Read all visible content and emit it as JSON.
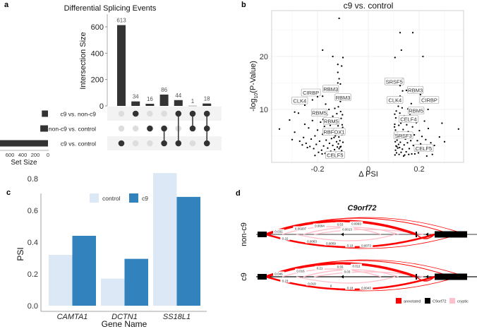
{
  "panels": {
    "a": "a",
    "b": "b",
    "c": "c",
    "d": "d"
  },
  "chart_data": [
    {
      "type": "bar",
      "subtype": "upset",
      "title": "Differential Splicing Events",
      "ylabel": "Intersection Size",
      "ylim": [
        0,
        700
      ],
      "yticks": [
        "0",
        "200",
        "400",
        "600"
      ],
      "sets": [
        {
          "name": "c9 vs. non-c9",
          "size": 97
        },
        {
          "name": "non-c9 vs. control",
          "size": 121
        },
        {
          "name": "c9 vs. control",
          "size": 761
        }
      ],
      "set_size_label": "Set Size",
      "set_size_ticks": [
        "600",
        "400",
        "200",
        "0"
      ],
      "intersections": [
        {
          "size": 613,
          "label": "613",
          "sets": [
            2
          ]
        },
        {
          "size": 34,
          "label": "34",
          "sets": [
            0
          ]
        },
        {
          "size": 16,
          "label": "16",
          "sets": [
            1
          ]
        },
        {
          "size": 86,
          "label": "86",
          "sets": [
            1,
            2
          ]
        },
        {
          "size": 44,
          "label": "44",
          "sets": [
            0,
            2
          ]
        },
        {
          "size": 1,
          "label": "1",
          "sets": [
            0,
            1
          ]
        },
        {
          "size": 18,
          "label": "18",
          "sets": [
            0,
            1,
            2
          ]
        }
      ],
      "colors": {
        "bar": "#333333",
        "dot_off": "#dddddd"
      }
    },
    {
      "type": "scatter",
      "title": "c9 vs. control",
      "xlabel": "Δ PSI",
      "ylabel_prefix": "-log",
      "ylabel_sub": "10",
      "ylabel_suffix": "(P-Value)",
      "xlim": [
        -0.38,
        0.375
      ],
      "ylim": [
        0,
        28.7
      ],
      "xticks": [
        {
          "v": -0.2,
          "label": "-0.2"
        },
        {
          "v": 0,
          "label": "0"
        },
        {
          "v": 0.2,
          "label": "0.2"
        }
      ],
      "yticks": [
        {
          "v": 10,
          "label": "10"
        },
        {
          "v": 20,
          "label": "20"
        }
      ],
      "grid": true,
      "points": [
        [
          -0.115,
          27.2
        ],
        [
          -0.18,
          21.2
        ],
        [
          -0.14,
          20
        ],
        [
          -0.1,
          19.8
        ],
        [
          -0.12,
          18.5
        ],
        [
          -0.105,
          18.2
        ],
        [
          -0.12,
          17
        ],
        [
          -0.115,
          15.8
        ],
        [
          -0.12,
          15
        ],
        [
          -0.11,
          14.8
        ],
        [
          -0.16,
          14
        ],
        [
          -0.125,
          13.5
        ],
        [
          -0.18,
          12.5
        ],
        [
          -0.2,
          12.4
        ],
        [
          -0.22,
          11.8
        ],
        [
          -0.25,
          10.8
        ],
        [
          -0.29,
          9.5
        ],
        [
          -0.275,
          9.3
        ],
        [
          -0.31,
          8
        ],
        [
          -0.35,
          6.3
        ],
        [
          -0.29,
          5.7
        ],
        [
          -0.3,
          4.3
        ],
        [
          -0.27,
          4
        ],
        [
          -0.21,
          1.3
        ],
        [
          0.125,
          24.5
        ],
        [
          0.175,
          24.5
        ],
        [
          0.13,
          21.2
        ],
        [
          0.105,
          19.8
        ],
        [
          0.215,
          20
        ],
        [
          0.135,
          15.8
        ],
        [
          0.125,
          14.5
        ],
        [
          0.15,
          13.6
        ],
        [
          0.205,
          12.8
        ],
        [
          0.22,
          12.3
        ],
        [
          0.235,
          10
        ],
        [
          0.29,
          7.4
        ],
        [
          0.355,
          6.3
        ],
        [
          0.28,
          4.8
        ],
        [
          0.3,
          3.9
        ],
        [
          0.26,
          3.2
        ],
        [
          0.23,
          1.2
        ],
        [
          -0.102,
          1.5
        ],
        [
          -0.105,
          2.2
        ],
        [
          -0.108,
          3.0
        ],
        [
          -0.11,
          1.8
        ],
        [
          -0.112,
          4.1
        ],
        [
          -0.115,
          2.6
        ],
        [
          -0.118,
          3.5
        ],
        [
          -0.12,
          1.6
        ],
        [
          -0.104,
          5.2
        ],
        [
          -0.106,
          6.0
        ],
        [
          -0.103,
          7.1
        ],
        [
          -0.107,
          8.3
        ],
        [
          -0.109,
          9.6
        ],
        [
          -0.113,
          5.5
        ],
        [
          -0.116,
          4.8
        ],
        [
          -0.122,
          2.9
        ],
        [
          -0.125,
          3.9
        ],
        [
          -0.128,
          1.9
        ],
        [
          -0.13,
          5.0
        ],
        [
          -0.133,
          2.4
        ],
        [
          -0.136,
          6.3
        ],
        [
          -0.14,
          3.2
        ],
        [
          -0.142,
          1.4
        ],
        [
          -0.145,
          4.5
        ],
        [
          -0.148,
          2.1
        ],
        [
          -0.15,
          7.0
        ],
        [
          -0.153,
          3.6
        ],
        [
          -0.156,
          5.7
        ],
        [
          -0.16,
          2.7
        ],
        [
          -0.163,
          9.0
        ],
        [
          -0.166,
          4.2
        ],
        [
          -0.17,
          1.7
        ],
        [
          -0.173,
          6.8
        ],
        [
          -0.176,
          3.1
        ],
        [
          -0.18,
          5.3
        ],
        [
          -0.184,
          2.3
        ],
        [
          -0.188,
          7.6
        ],
        [
          -0.192,
          4.0
        ],
        [
          -0.196,
          1.9
        ],
        [
          -0.2,
          6.1
        ],
        [
          -0.205,
          3.4
        ],
        [
          -0.21,
          5.0
        ],
        [
          -0.215,
          2.6
        ],
        [
          -0.22,
          7.9
        ],
        [
          -0.225,
          4.4
        ],
        [
          -0.23,
          3.0
        ],
        [
          -0.235,
          6.5
        ],
        [
          -0.24,
          2.8
        ],
        [
          -0.245,
          3.6
        ],
        [
          -0.25,
          7.2
        ],
        [
          -0.255,
          4.7
        ],
        [
          -0.26,
          3.3
        ],
        [
          -0.118,
          10.5
        ],
        [
          -0.124,
          9.2
        ],
        [
          -0.132,
          10.2
        ],
        [
          -0.14,
          8.7
        ],
        [
          -0.155,
          10.0
        ],
        [
          -0.168,
          11.0
        ],
        [
          -0.178,
          8.1
        ],
        [
          -0.11,
          11.5
        ],
        [
          -0.1,
          3.8
        ],
        [
          -0.101,
          6.6
        ],
        [
          -0.102,
          9.0
        ],
        [
          -0.127,
          7.3
        ],
        [
          -0.138,
          1.3
        ],
        [
          -0.158,
          1.5
        ],
        [
          -0.182,
          1.6
        ],
        [
          -0.111,
          2.9
        ],
        [
          -0.119,
          6.9
        ],
        [
          -0.135,
          4.7
        ],
        [
          0.105,
          1.4
        ],
        [
          0.107,
          2.3
        ],
        [
          0.109,
          3.1
        ],
        [
          0.111,
          1.8
        ],
        [
          0.113,
          4.2
        ],
        [
          0.116,
          2.7
        ],
        [
          0.119,
          3.4
        ],
        [
          0.121,
          1.5
        ],
        [
          0.105,
          5.3
        ],
        [
          0.107,
          6.1
        ],
        [
          0.104,
          7.2
        ],
        [
          0.108,
          8.4
        ],
        [
          0.11,
          9.7
        ],
        [
          0.114,
          5.6
        ],
        [
          0.117,
          4.9
        ],
        [
          0.123,
          2.8
        ],
        [
          0.126,
          3.8
        ],
        [
          0.129,
          1.9
        ],
        [
          0.131,
          5.1
        ],
        [
          0.134,
          2.5
        ],
        [
          0.137,
          6.2
        ],
        [
          0.141,
          3.3
        ],
        [
          0.143,
          1.4
        ],
        [
          0.146,
          4.4
        ],
        [
          0.149,
          2.0
        ],
        [
          0.151,
          7.1
        ],
        [
          0.154,
          3.7
        ],
        [
          0.157,
          5.8
        ],
        [
          0.161,
          2.6
        ],
        [
          0.164,
          9.1
        ],
        [
          0.167,
          4.1
        ],
        [
          0.171,
          1.6
        ],
        [
          0.174,
          6.7
        ],
        [
          0.177,
          3.2
        ],
        [
          0.181,
          5.2
        ],
        [
          0.185,
          2.2
        ],
        [
          0.189,
          7.5
        ],
        [
          0.193,
          4.1
        ],
        [
          0.197,
          1.8
        ],
        [
          0.201,
          6.0
        ],
        [
          0.206,
          3.5
        ],
        [
          0.211,
          4.9
        ],
        [
          0.216,
          2.5
        ],
        [
          0.221,
          7.8
        ],
        [
          0.226,
          4.3
        ],
        [
          0.231,
          3.1
        ],
        [
          0.236,
          6.4
        ],
        [
          0.241,
          2.9
        ],
        [
          0.246,
          3.7
        ],
        [
          0.252,
          1.5
        ],
        [
          0.118,
          10.6
        ],
        [
          0.124,
          9.3
        ],
        [
          0.133,
          10.3
        ],
        [
          0.141,
          8.8
        ],
        [
          0.156,
          10.1
        ],
        [
          0.169,
          11.1
        ],
        [
          0.112,
          11.6
        ],
        [
          0.106,
          3.9
        ],
        [
          0.103,
          6.7
        ],
        [
          0.104,
          9.1
        ],
        [
          0.128,
          7.4
        ],
        [
          0.139,
          1.2
        ],
        [
          0.159,
          1.5
        ],
        [
          0.183,
          1.6
        ],
        [
          0.112,
          3.0
        ],
        [
          0.12,
          7.0
        ],
        [
          0.136,
          4.8
        ],
        [
          0.125,
          12.5
        ],
        [
          0.135,
          13.5
        ]
      ],
      "annotations": [
        {
          "text": "CIRBP",
          "x": -0.226,
          "y": 13.2
        },
        {
          "text": "RBM3",
          "x": -0.148,
          "y": 13.9
        },
        {
          "text": "RBM3",
          "x": -0.1,
          "y": 12.3
        },
        {
          "text": "CLK4",
          "x": -0.27,
          "y": 11.7
        },
        {
          "text": "RBM5",
          "x": -0.193,
          "y": 9.4
        },
        {
          "text": "RBM5",
          "x": -0.146,
          "y": 7.8
        },
        {
          "text": "RBFOX1",
          "x": -0.135,
          "y": 5.8
        },
        {
          "text": "CELF5",
          "x": -0.131,
          "y": 1.4
        },
        {
          "text": "SRSF5",
          "x": 0.102,
          "y": 15.3
        },
        {
          "text": "RBM3",
          "x": 0.185,
          "y": 13.7
        },
        {
          "text": "CIRBP",
          "x": 0.24,
          "y": 11.8
        },
        {
          "text": "CLK4",
          "x": 0.105,
          "y": 11.8
        },
        {
          "text": "RBM5",
          "x": 0.188,
          "y": 9.8
        },
        {
          "text": "CELF4",
          "x": 0.158,
          "y": 8.2
        },
        {
          "text": "SRSF3",
          "x": 0.138,
          "y": 5.1
        },
        {
          "text": "CELF5",
          "x": 0.218,
          "y": 2.7
        }
      ]
    },
    {
      "type": "bar",
      "xlabel": "Gene Name",
      "ylabel": "PSI",
      "ylim": [
        0,
        0.85
      ],
      "yticks": [
        {
          "v": 0,
          "label": "0.0"
        },
        {
          "v": 0.2,
          "label": "0.2"
        },
        {
          "v": 0.4,
          "label": "0.4"
        },
        {
          "v": 0.6,
          "label": "0.6"
        },
        {
          "v": 0.8,
          "label": "0.8"
        }
      ],
      "categories": [
        "CAMTA1",
        "DCTN1",
        "SS18L1"
      ],
      "series": [
        {
          "name": "control",
          "color": "#dce8f5",
          "values": [
            0.32,
            0.17,
            0.835
          ]
        },
        {
          "name": "c9",
          "color": "#3182bd",
          "values": [
            0.44,
            0.295,
            0.685
          ]
        }
      ],
      "legend": "top"
    }
  ],
  "panel_d": {
    "title": "C9orf72",
    "tracks": [
      {
        "name": "non-c9",
        "labels": [
          "0.031",
          "0.00207",
          "0.0094",
          "0.53",
          "0.0093",
          "0.0013",
          "0.22",
          "0.0063",
          "0.0059",
          "0.19",
          "0.0073"
        ]
      },
      {
        "name": "c9",
        "labels": [
          "0.046",
          "0.016",
          "0.21",
          "0.55",
          "0.011",
          "0.03",
          "0.23",
          "0.019",
          "0",
          "0.18",
          "0.0043"
        ]
      }
    ],
    "legend": [
      {
        "label": "annotated",
        "color": "#ff0000"
      },
      {
        "label": "C9orf72",
        "color": "#000000"
      },
      {
        "label": "cryptic",
        "color": "#ffc0cb"
      }
    ]
  }
}
